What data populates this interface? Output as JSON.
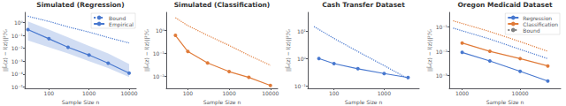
{
  "chart_data": [
    {
      "type": "line",
      "title": "Simulated (Regression)",
      "xlabel": "Sample Size n",
      "ylabel": "||l̂ₙ(z) − l(z)||²ℋᵣ",
      "log": true,
      "grid": false,
      "legend": "upper right",
      "xlim": [
        25,
        15000
      ],
      "ylim": [
        8e-06,
        6
      ],
      "xticks": [
        100,
        1000,
        10000
      ],
      "yticks": [
        {
          "value": 1e-05,
          "label": "10⁻⁵"
        },
        {
          "value": 0.0001,
          "label": "10⁻⁴"
        },
        {
          "value": 0.001,
          "label": "10⁻³"
        },
        {
          "value": 0.01,
          "label": "10⁻²"
        },
        {
          "value": 0.1,
          "label": "10⁻¹"
        },
        {
          "value": 1,
          "label": "10⁰"
        }
      ],
      "band": {
        "x": [
          30,
          100,
          300,
          1000,
          3000,
          10000
        ],
        "lower": [
          0.04,
          0.012,
          0.004,
          0.001,
          0.0003,
          6e-05
        ],
        "upper": [
          1.2,
          0.28,
          0.07,
          0.015,
          0.004,
          0.0006
        ],
        "color": "#4878cf"
      },
      "series": [
        {
          "name": "Bound",
          "color": "#4878cf",
          "line_style": "dotted",
          "marker": "none",
          "x": [
            30,
            100,
            300,
            1000,
            3000,
            10000
          ],
          "values": [
            3.0,
            1.2,
            0.45,
            0.18,
            0.068,
            0.026
          ]
        },
        {
          "name": "Empirical",
          "color": "#4878cf",
          "line_style": "solid",
          "marker": "o",
          "x": [
            30,
            100,
            300,
            1000,
            3000,
            10000
          ],
          "values": [
            0.28,
            0.055,
            0.012,
            0.003,
            0.0007,
            0.00012
          ]
        }
      ]
    },
    {
      "type": "line",
      "title": "Simulated (Classification)",
      "xlabel": "Sample Size n",
      "ylabel": "||l̂ₙ(z) − l(z)||²ℋᵣ",
      "log": true,
      "grid": false,
      "xlim": [
        30,
        15000
      ],
      "ylim": [
        0.003,
        6
      ],
      "xticks": [
        100,
        1000,
        10000
      ],
      "yticks": [
        {
          "value": 0.01,
          "label": "10⁻²"
        },
        {
          "value": 0.1,
          "label": "10⁻¹"
        },
        {
          "value": 1,
          "label": "10⁰"
        }
      ],
      "series": [
        {
          "color": "#e07b39",
          "line_style": "dotted",
          "marker": "none",
          "x": [
            50,
            100,
            300,
            1000,
            3000,
            10000
          ],
          "values": [
            3.5,
            1.6,
            0.6,
            0.22,
            0.082,
            0.03
          ]
        },
        {
          "color": "#e07b39",
          "line_style": "solid",
          "marker": "o",
          "x": [
            50,
            100,
            300,
            1000,
            3000,
            10000
          ],
          "values": [
            0.6,
            0.12,
            0.038,
            0.016,
            0.009,
            0.004
          ]
        }
      ]
    },
    {
      "type": "line",
      "title": "Cash Transfer Dataset",
      "xlabel": "Sample Size n",
      "ylabel": "||l̂ₙ(z) − l(z)||²ℋᵣ",
      "log": true,
      "grid": false,
      "xlim": [
        30,
        5000
      ],
      "ylim": [
        0.08,
        50
      ],
      "xticks": [
        100,
        1000
      ],
      "yticks": [
        {
          "value": 0.1,
          "label": "10⁻¹"
        },
        {
          "value": 1,
          "label": "10⁰"
        },
        {
          "value": 10,
          "label": "10¹"
        }
      ],
      "series": [
        {
          "color": "#4878cf",
          "line_style": "dotted",
          "marker": "none",
          "x": [
            40,
            100,
            300,
            1000,
            3000
          ],
          "values": [
            15.0,
            5.5,
            1.8,
            0.55,
            0.18
          ]
        },
        {
          "color": "#4878cf",
          "line_style": "solid",
          "marker": "o",
          "x": [
            50,
            100,
            300,
            1000,
            3000
          ],
          "values": [
            1.0,
            0.65,
            0.42,
            0.28,
            0.2
          ]
        }
      ]
    },
    {
      "type": "line",
      "title": "Oregon Medicaid Dataset",
      "xlabel": "Sample Size n",
      "ylabel": "||l̂ₙ(z) − l(z)||²ℋᵣ",
      "log": true,
      "grid": false,
      "legend": "upper right",
      "xlim": [
        600,
        50000
      ],
      "ylim": [
        0.0003,
        0.4
      ],
      "xticks": [
        1000,
        10000
      ],
      "yticks": [
        {
          "value": 0.001,
          "label": "10⁻³"
        },
        {
          "value": 0.01,
          "label": "10⁻²"
        },
        {
          "value": 0.1,
          "label": "10⁻¹"
        }
      ],
      "series": [
        {
          "color": "#4878cf",
          "line_style": "dotted",
          "marker": "none",
          "x": [
            700,
            3000,
            10000,
            30000
          ],
          "values": [
            0.09,
            0.032,
            0.012,
            0.005
          ]
        },
        {
          "color": "#e07b39",
          "line_style": "dotted",
          "marker": "none",
          "x": [
            700,
            3000,
            10000,
            30000
          ],
          "values": [
            0.18,
            0.065,
            0.025,
            0.01
          ]
        },
        {
          "name": "Regression",
          "color": "#4878cf",
          "line_style": "solid",
          "marker": "o",
          "x": [
            1000,
            3000,
            10000,
            30000
          ],
          "values": [
            0.009,
            0.004,
            0.0015,
            0.0006
          ]
        },
        {
          "name": "Classification",
          "color": "#e07b39",
          "line_style": "solid",
          "marker": "o",
          "x": [
            1000,
            3000,
            10000,
            30000
          ],
          "values": [
            0.022,
            0.01,
            0.005,
            0.0025
          ]
        },
        {
          "name": "Bound",
          "color": "gray",
          "line_style": "dotted",
          "marker": "none",
          "x": [],
          "values": []
        }
      ]
    }
  ]
}
